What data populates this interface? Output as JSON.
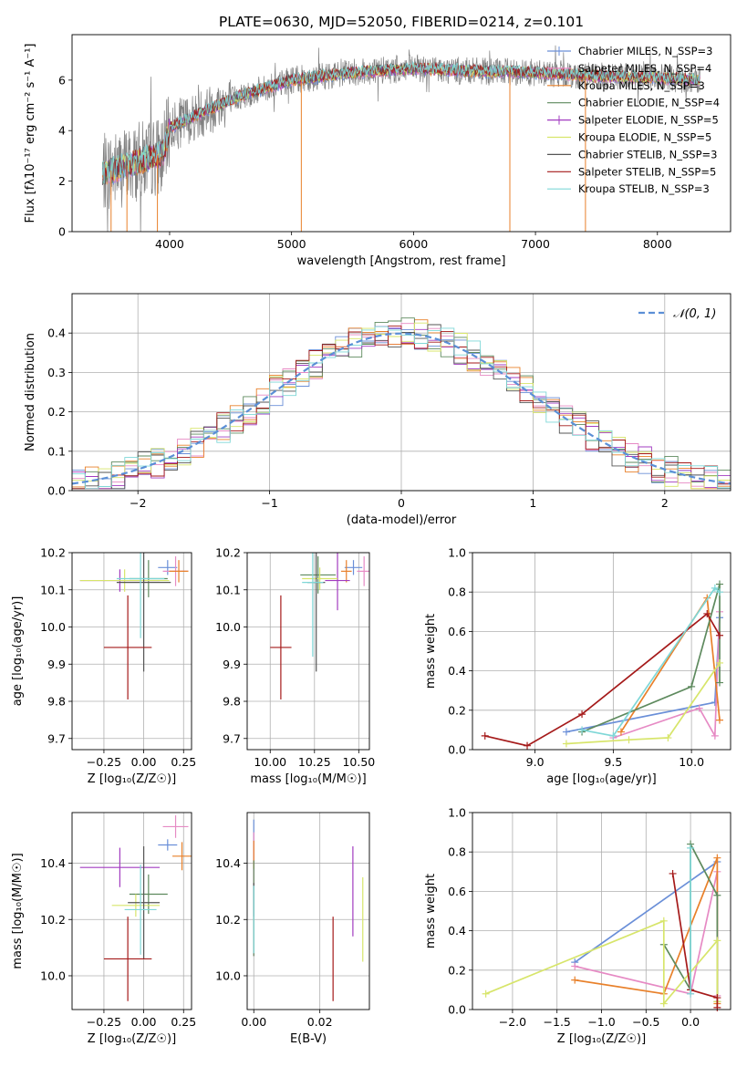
{
  "title": "PLATE=0630, MJD=52050, FIBERID=0214, z=0.101",
  "colors": {
    "chabrier_miles": "#6a8fd8",
    "salpeter_miles": "#e68ac4",
    "kroupa_miles": "#e8802a",
    "chabrier_elodie": "#5e8a5e",
    "salpeter_elodie": "#a23cc0",
    "kroupa_elodie": "#d7e56a",
    "chabrier_stelib": "#555555",
    "salpeter_stelib": "#a51a1a",
    "kroupa_stelib": "#7fd7d7",
    "data": "#808080",
    "normal": "#5b8fd6"
  },
  "chart_data": [
    {
      "type": "line",
      "xlabel": "wavelength [Angstrom, rest frame]",
      "ylabel": "Flux [fλ10⁻¹⁷ erg cm⁻² s⁻¹ A⁻¹]",
      "xlim": [
        3200,
        8600
      ],
      "ylim": [
        0,
        7.8
      ],
      "xticks": [
        "4000",
        "5000",
        "6000",
        "7000",
        "8000"
      ],
      "yticks": [
        "0",
        "2",
        "4",
        "6"
      ],
      "legend_position": "right",
      "legend": [
        "Chabrier MILES, N_SSP=3",
        "Salpeter MILES, N_SSP=4",
        "Kroupa MILES, N_SSP=3",
        "Chabrier ELODIE, N_SSP=4",
        "Salpeter ELODIE, N_SSP=5",
        "Kroupa ELODIE, N_SSP=5",
        "Chabrier STELIB, N_SSP=3",
        "Salpeter STELIB, N_SSP=5",
        "Kroupa STELIB, N_SSP=3"
      ],
      "continuum_profile": {
        "x": [
          3450,
          3700,
          3950,
          4000,
          4300,
          4600,
          5000,
          5500,
          6000,
          6500,
          7000,
          7500,
          8000,
          8350
        ],
        "y": [
          2.3,
          2.7,
          3.1,
          4.1,
          4.8,
          5.4,
          6.0,
          6.3,
          6.45,
          6.35,
          6.3,
          6.15,
          6.1,
          6.0
        ]
      }
    },
    {
      "type": "bar",
      "xlabel": "(data-model)/error",
      "ylabel": "Normed distribution",
      "xlim": [
        -2.5,
        2.5
      ],
      "ylim": [
        0,
        0.5
      ],
      "xticks": [
        "−2",
        "−1",
        "0",
        "1",
        "2"
      ],
      "yticks": [
        "0.0",
        "0.1",
        "0.2",
        "0.3",
        "0.4"
      ],
      "grid": true,
      "legend_position": "top-right",
      "legend": [
        "𝒩(0, 1)"
      ],
      "bins": [
        -2.5,
        -2.4,
        -2.3,
        -2.2,
        -2.1,
        -2.0,
        -1.9,
        -1.8,
        -1.7,
        -1.6,
        -1.5,
        -1.4,
        -1.3,
        -1.2,
        -1.1,
        -1.0,
        -0.9,
        -0.8,
        -0.7,
        -0.6,
        -0.5,
        -0.4,
        -0.3,
        -0.2,
        -0.1,
        0.0,
        0.1,
        0.2,
        0.3,
        0.4,
        0.5,
        0.6,
        0.7,
        0.8,
        0.9,
        1.0,
        1.1,
        1.2,
        1.3,
        1.4,
        1.5,
        1.6,
        1.7,
        1.8,
        1.9,
        2.0,
        2.1,
        2.2,
        2.3,
        2.4,
        2.5
      ],
      "normal_curve": {
        "mean": 0,
        "std": 1
      }
    },
    {
      "type": "scatter",
      "xlabel": "Z [log₁₀(Z/Z☉)]",
      "ylabel": "age  [log₁₀(age/yr)]",
      "xlim": [
        -0.45,
        0.3
      ],
      "ylim": [
        9.67,
        10.2
      ],
      "xticks": [
        "−0.25",
        "0.00",
        "0.25"
      ],
      "yticks": [
        "9.7",
        "9.8",
        "9.9",
        "10.0",
        "10.1",
        "10.2"
      ],
      "points": [
        {
          "x": 0.15,
          "y": 10.16,
          "xerr": 0.06,
          "yerr": 0.02
        },
        {
          "x": 0.2,
          "y": 10.15,
          "xerr": 0.08,
          "yerr": 0.04
        },
        {
          "x": 0.22,
          "y": 10.15,
          "xerr": 0.06,
          "yerr": 0.03
        },
        {
          "x": 0.03,
          "y": 10.13,
          "xerr": 0.12,
          "yerr": 0.05
        },
        {
          "x": -0.15,
          "y": 10.125,
          "xerr": 0.25,
          "yerr": 0.03
        },
        {
          "x": -0.12,
          "y": 10.125,
          "xerr": 0.28,
          "yerr": 0.03
        },
        {
          "x": 0.0,
          "y": 10.12,
          "xerr": 0.17,
          "yerr": 0.24
        },
        {
          "x": -0.1,
          "y": 9.945,
          "xerr": 0.15,
          "yerr": 0.14
        },
        {
          "x": -0.02,
          "y": 10.13,
          "xerr": 0.15,
          "yerr": 0.16
        }
      ]
    },
    {
      "type": "scatter",
      "xlabel": "mass [log₁₀(M/M☉)]",
      "ylabel": "",
      "xlim": [
        9.87,
        10.56
      ],
      "ylim": [
        9.67,
        10.2
      ],
      "xticks": [
        "10.00",
        "10.25",
        "10.50"
      ],
      "yticks": [
        "9.7",
        "9.8",
        "9.9",
        "10.0",
        "10.1",
        "10.2"
      ],
      "points": [
        {
          "x": 10.47,
          "y": 10.16,
          "xerr": 0.05,
          "yerr": 0.02
        },
        {
          "x": 10.53,
          "y": 10.15,
          "xerr": 0.04,
          "yerr": 0.04
        },
        {
          "x": 10.43,
          "y": 10.15,
          "xerr": 0.03,
          "yerr": 0.03
        },
        {
          "x": 10.27,
          "y": 10.14,
          "xerr": 0.1,
          "yerr": 0.05
        },
        {
          "x": 10.38,
          "y": 10.125,
          "xerr": 0.07,
          "yerr": 0.08
        },
        {
          "x": 10.28,
          "y": 10.13,
          "xerr": 0.1,
          "yerr": 0.03
        },
        {
          "x": 10.26,
          "y": 10.12,
          "xerr": 0.05,
          "yerr": 0.24
        },
        {
          "x": 10.06,
          "y": 9.945,
          "xerr": 0.06,
          "yerr": 0.14
        },
        {
          "x": 10.24,
          "y": 10.12,
          "xerr": 0.06,
          "yerr": 0.2
        }
      ]
    },
    {
      "type": "line",
      "xlabel": "age  [log₁₀(age/yr)]",
      "ylabel": "mass weight",
      "xlim": [
        8.6,
        10.25
      ],
      "ylim": [
        0,
        1.0
      ],
      "xticks": [
        "9.0",
        "9.5",
        "10.0"
      ],
      "yticks": [
        "0.0",
        "0.2",
        "0.4",
        "0.6",
        "0.8",
        "1.0"
      ],
      "grid": true,
      "series": [
        {
          "x": [
            9.2,
            10.15,
            10.18
          ],
          "y": [
            0.09,
            0.24,
            0.67
          ]
        },
        {
          "x": [
            9.5,
            10.05,
            10.15,
            10.18
          ],
          "y": [
            0.06,
            0.21,
            0.07,
            0.7
          ]
        },
        {
          "x": [
            9.55,
            10.1,
            10.18
          ],
          "y": [
            0.09,
            0.77,
            0.15
          ]
        },
        {
          "x": [
            9.3,
            10.0,
            10.18,
            10.18
          ],
          "y": [
            0.09,
            0.32,
            0.84,
            0.34
          ]
        },
        {
          "x": [
            9.2,
            9.6,
            9.85,
            10.18
          ],
          "y": [
            0.03,
            0.05,
            0.06,
            0.44
          ]
        },
        {
          "x": [
            8.68,
            8.95,
            9.3,
            10.1,
            10.18
          ],
          "y": [
            0.07,
            0.02,
            0.18,
            0.69,
            0.58
          ]
        },
        {
          "x": [
            9.3,
            9.5,
            10.15,
            10.18
          ],
          "y": [
            0.1,
            0.07,
            0.82,
            0.8
          ]
        }
      ]
    },
    {
      "type": "scatter",
      "xlabel": "Z [log₁₀(Z/Z☉)]",
      "ylabel": "mass [log₁₀(M/M☉)]",
      "xlim": [
        -0.45,
        0.3
      ],
      "ylim": [
        9.88,
        10.58
      ],
      "xticks": [
        "−0.25",
        "0.00",
        "0.25"
      ],
      "yticks": [
        "10.0",
        "10.2",
        "10.4"
      ],
      "points": [
        {
          "x": 0.15,
          "y": 10.465,
          "xerr": 0.06,
          "yerr": 0.02
        },
        {
          "x": 0.2,
          "y": 10.53,
          "xerr": 0.08,
          "yerr": 0.04
        },
        {
          "x": 0.24,
          "y": 10.425,
          "xerr": 0.06,
          "yerr": 0.05
        },
        {
          "x": 0.03,
          "y": 10.29,
          "xerr": 0.12,
          "yerr": 0.07
        },
        {
          "x": -0.15,
          "y": 10.385,
          "xerr": 0.25,
          "yerr": 0.07
        },
        {
          "x": -0.05,
          "y": 10.25,
          "xerr": 0.15,
          "yerr": 0.04
        },
        {
          "x": 0.0,
          "y": 10.26,
          "xerr": 0.1,
          "yerr": 0.2
        },
        {
          "x": -0.1,
          "y": 10.06,
          "xerr": 0.15,
          "yerr": 0.15
        },
        {
          "x": -0.02,
          "y": 10.235,
          "xerr": 0.1,
          "yerr": 0.16
        }
      ]
    },
    {
      "type": "scatter",
      "xlabel": "E(B-V)",
      "ylabel": "",
      "xlim": [
        -0.002,
        0.035
      ],
      "ylim": [
        9.88,
        10.58
      ],
      "xticks": [
        "0.00",
        "0.02"
      ],
      "yticks": [
        "10.0",
        "10.2",
        "10.4"
      ],
      "points": [
        {
          "x": 0.0,
          "y": 10.465,
          "yerr": 0.09
        },
        {
          "x": 0.0,
          "y": 10.29,
          "yerr": 0.22
        },
        {
          "x": 0.0,
          "y": 10.43,
          "yerr": 0.05
        },
        {
          "x": 0.0,
          "y": 10.24,
          "yerr": 0.17
        },
        {
          "x": 0.03,
          "y": 10.3,
          "yerr": 0.16
        },
        {
          "x": 0.033,
          "y": 10.2,
          "yerr": 0.15
        },
        {
          "x": 0.0,
          "y": 10.27,
          "yerr": 0.06
        },
        {
          "x": 0.024,
          "y": 10.06,
          "yerr": 0.15
        },
        {
          "x": 0.0,
          "y": 10.2,
          "yerr": 0.12
        }
      ]
    },
    {
      "type": "line",
      "xlabel": "Z [log₁₀(Z/Z☉)]",
      "ylabel": "mass weight",
      "xlim": [
        -2.45,
        0.45
      ],
      "ylim": [
        0,
        1.0
      ],
      "xticks": [
        "−2.0",
        "−1.5",
        "−1.0",
        "−0.5",
        "0.0"
      ],
      "yticks": [
        "0.0",
        "0.2",
        "0.4",
        "0.6",
        "0.8",
        "1.0"
      ],
      "grid": true,
      "series": [
        {
          "x": [
            -1.3,
            0.3
          ],
          "y": [
            0.24,
            0.75
          ]
        },
        {
          "x": [
            -1.3,
            0.0,
            0.3,
            0.3
          ],
          "y": [
            0.22,
            0.08,
            0.7,
            0.07
          ]
        },
        {
          "x": [
            -1.3,
            -0.3,
            0.3,
            0.3
          ],
          "y": [
            0.15,
            0.08,
            0.77,
            0.03
          ]
        },
        {
          "x": [
            -0.3,
            0.0,
            0.0,
            0.3,
            0.3
          ],
          "y": [
            0.33,
            0.1,
            0.84,
            0.58,
            0.04
          ]
        },
        {
          "x": [
            -2.3,
            -0.3,
            -0.3,
            0.3,
            0.3
          ],
          "y": [
            0.08,
            0.45,
            0.03,
            0.35,
            0.04
          ]
        },
        {
          "x": [
            -0.2,
            0.0,
            0.3,
            0.3
          ],
          "y": [
            0.69,
            0.1,
            0.06,
            0.01
          ]
        },
        {
          "x": [
            0.0,
            0.0
          ],
          "y": [
            0.08,
            0.82
          ]
        }
      ]
    }
  ]
}
